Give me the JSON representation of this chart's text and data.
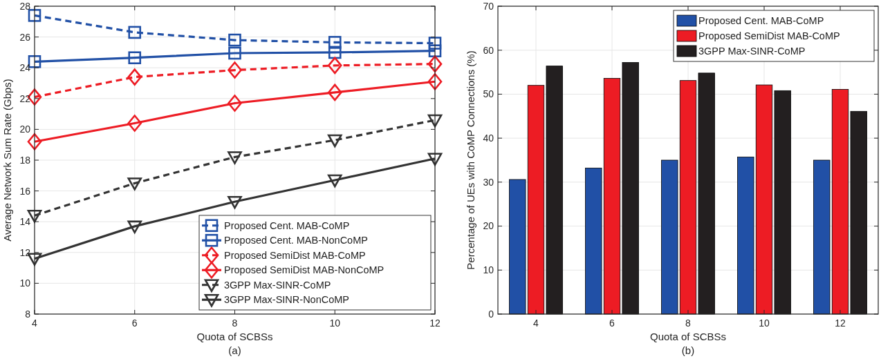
{
  "chart_data": [
    {
      "type": "line",
      "xlabel": "Quota of SCBSs",
      "ylabel": "Average Network Sum Rate (Gbps)",
      "annotations": [
        "(a)"
      ],
      "x": [
        4,
        6,
        8,
        10,
        12
      ],
      "xlim": [
        4,
        12
      ],
      "xticks": [
        4,
        6,
        8,
        10,
        12
      ],
      "ylim": [
        8,
        28
      ],
      "yticks": [
        8,
        10,
        12,
        14,
        16,
        18,
        20,
        22,
        24,
        26,
        28
      ],
      "grid": true,
      "legend": "bottom right",
      "series": [
        {
          "name": "Proposed Cent. MAB-CoMP",
          "color": "#2150a6",
          "marker": "square",
          "line_style": "dashed",
          "values": [
            27.4,
            26.3,
            25.8,
            25.65,
            25.6
          ]
        },
        {
          "name": "Proposed Cent. MAB-NonCoMP",
          "color": "#2150a6",
          "marker": "square",
          "line_style": "solid",
          "values": [
            24.4,
            24.65,
            24.95,
            25.0,
            25.1
          ]
        },
        {
          "name": "Proposed SemiDist MAB-CoMP",
          "color": "#ed1c24",
          "marker": "diamond",
          "line_style": "dashed",
          "values": [
            22.1,
            23.4,
            23.85,
            24.15,
            24.25
          ]
        },
        {
          "name": "Proposed SemiDist MAB-NonCoMP",
          "color": "#ed1c24",
          "marker": "diamond",
          "line_style": "solid",
          "values": [
            19.2,
            20.4,
            21.7,
            22.4,
            23.1
          ]
        },
        {
          "name": "3GPP Max-SINR-CoMP",
          "color": "#333333",
          "marker": "triangle",
          "line_style": "dashed",
          "values": [
            14.4,
            16.5,
            18.2,
            19.3,
            20.6
          ]
        },
        {
          "name": "3GPP Max-SINR-NonCoMP",
          "color": "#333333",
          "marker": "triangle",
          "line_style": "solid",
          "values": [
            11.6,
            13.7,
            15.3,
            16.7,
            18.1
          ]
        }
      ]
    },
    {
      "type": "bar",
      "xlabel": "Quota of SCBSs",
      "ylabel": "Percentage of UEs with CoMP Connections (%)",
      "annotations": [
        "(b)"
      ],
      "categories": [
        "4",
        "6",
        "8",
        "10",
        "12"
      ],
      "ylim": [
        0,
        70
      ],
      "yticks": [
        0,
        10,
        20,
        30,
        40,
        50,
        60,
        70
      ],
      "grid": true,
      "legend": "top right",
      "series": [
        {
          "name": "Proposed Cent. MAB-CoMP",
          "color": "#2150a6",
          "values": [
            30.6,
            33.2,
            35.0,
            35.7,
            35.0
          ]
        },
        {
          "name": "Proposed SemiDist MAB-CoMP",
          "color": "#ed1c24",
          "values": [
            52.0,
            53.6,
            53.1,
            52.1,
            51.1
          ]
        },
        {
          "name": "3GPP Max-SINR-CoMP",
          "color": "#231f20",
          "values": [
            56.4,
            57.2,
            54.8,
            50.8,
            46.1
          ]
        }
      ]
    }
  ]
}
